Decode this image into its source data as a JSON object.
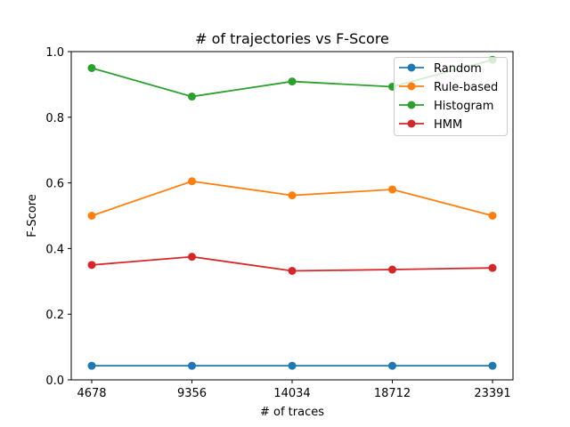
{
  "chart_data": {
    "type": "line",
    "title": "# of trajectories vs F-Score",
    "xlabel": "# of traces",
    "ylabel": "F-Score",
    "categories": [
      "4678",
      "9356",
      "14034",
      "18712",
      "23391"
    ],
    "ylim": [
      0,
      1.0
    ],
    "yticks": [
      "0.0",
      "0.2",
      "0.4",
      "0.6",
      "0.8",
      "1.0"
    ],
    "grid": false,
    "legend_position": "top-right",
    "series": [
      {
        "name": "Random",
        "color": "#1f77b4",
        "values": [
          0.043,
          0.043,
          0.043,
          0.043,
          0.043
        ]
      },
      {
        "name": "Rule-based",
        "color": "#ff7f0e",
        "values": [
          0.5,
          0.605,
          0.562,
          0.58,
          0.5
        ]
      },
      {
        "name": "Histogram",
        "color": "#2ca02c",
        "values": [
          0.95,
          0.863,
          0.909,
          0.893,
          0.975
        ]
      },
      {
        "name": "HMM",
        "color": "#d62728",
        "values": [
          0.35,
          0.375,
          0.332,
          0.336,
          0.341
        ]
      }
    ]
  }
}
